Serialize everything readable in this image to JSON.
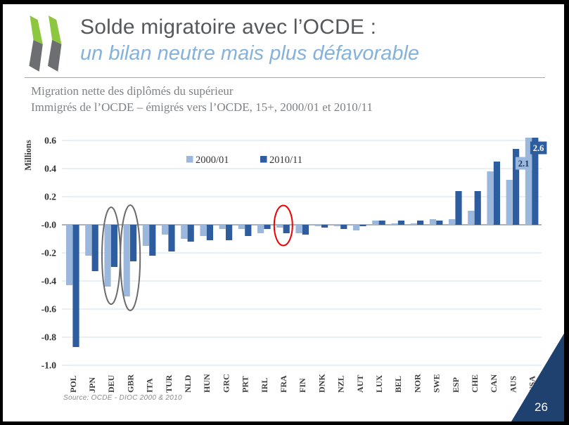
{
  "header": {
    "title": "Solde migratoire avec l’OCDE :",
    "subtitle": "un bilan neutre mais plus défavorable"
  },
  "chart_data": {
    "type": "bar",
    "title_lines": [
      "Migration nette des diplômés du supérieur",
      "Immigrés de l’OCDE – émigrés vers l’OCDE, 15+, 2000/01 et 2010/11"
    ],
    "ylabel": "Millions",
    "ylim": [
      -1.0,
      0.6
    ],
    "ytick_step": 0.2,
    "grid": true,
    "legend_position": "top-center",
    "categories": [
      "POL",
      "JPN",
      "DEU",
      "GBR",
      "ITA",
      "TUR",
      "NLD",
      "HUN",
      "GRC",
      "PRT",
      "IRL",
      "FRA",
      "FIN",
      "DNK",
      "NZL",
      "AUT",
      "LUX",
      "BEL",
      "NOR",
      "SWE",
      "ESP",
      "CHE",
      "CAN",
      "AUS",
      "USA"
    ],
    "series": [
      {
        "name": "2000/01",
        "color": "#9bb8dc",
        "values": [
          -0.43,
          -0.22,
          -0.44,
          -0.51,
          -0.15,
          -0.07,
          -0.1,
          -0.08,
          -0.03,
          -0.03,
          -0.06,
          -0.02,
          -0.06,
          -0.01,
          -0.01,
          -0.04,
          0.03,
          0.01,
          0.01,
          0.04,
          0.04,
          0.1,
          0.38,
          0.32,
          2.1
        ]
      },
      {
        "name": "2010/11",
        "color": "#2d5d9e",
        "values": [
          -0.87,
          -0.33,
          -0.3,
          -0.26,
          -0.22,
          -0.19,
          -0.12,
          -0.11,
          -0.11,
          -0.08,
          -0.03,
          -0.06,
          -0.07,
          -0.02,
          -0.03,
          -0.01,
          0.03,
          0.03,
          0.03,
          0.03,
          0.24,
          0.24,
          0.45,
          0.54,
          2.6
        ]
      }
    ],
    "data_labels": [
      {
        "category": "USA",
        "series": "2000/01",
        "text": "2.1"
      },
      {
        "category": "USA",
        "series": "2010/11",
        "text": "2.6"
      }
    ],
    "annotations": [
      {
        "shape": "ellipse",
        "target": "DEU",
        "color": "#6b6b6b"
      },
      {
        "shape": "ellipse",
        "target": "GBR",
        "color": "#6b6b6b"
      },
      {
        "shape": "ellipse",
        "target": "FRA",
        "color": "#ee0000"
      }
    ],
    "source": "Source:  OCDE - DIOC 2000 & 2010"
  },
  "page": {
    "number": "26"
  },
  "colors": {
    "title_text": "#57585a",
    "subtitle_text": "#85b2dc",
    "corner_triangle": "#1e4170",
    "logo_green": "#8dc63f",
    "logo_gray": "#6d6e71",
    "gridline": "#d6e0e7",
    "zero_line": "#909ca4"
  }
}
